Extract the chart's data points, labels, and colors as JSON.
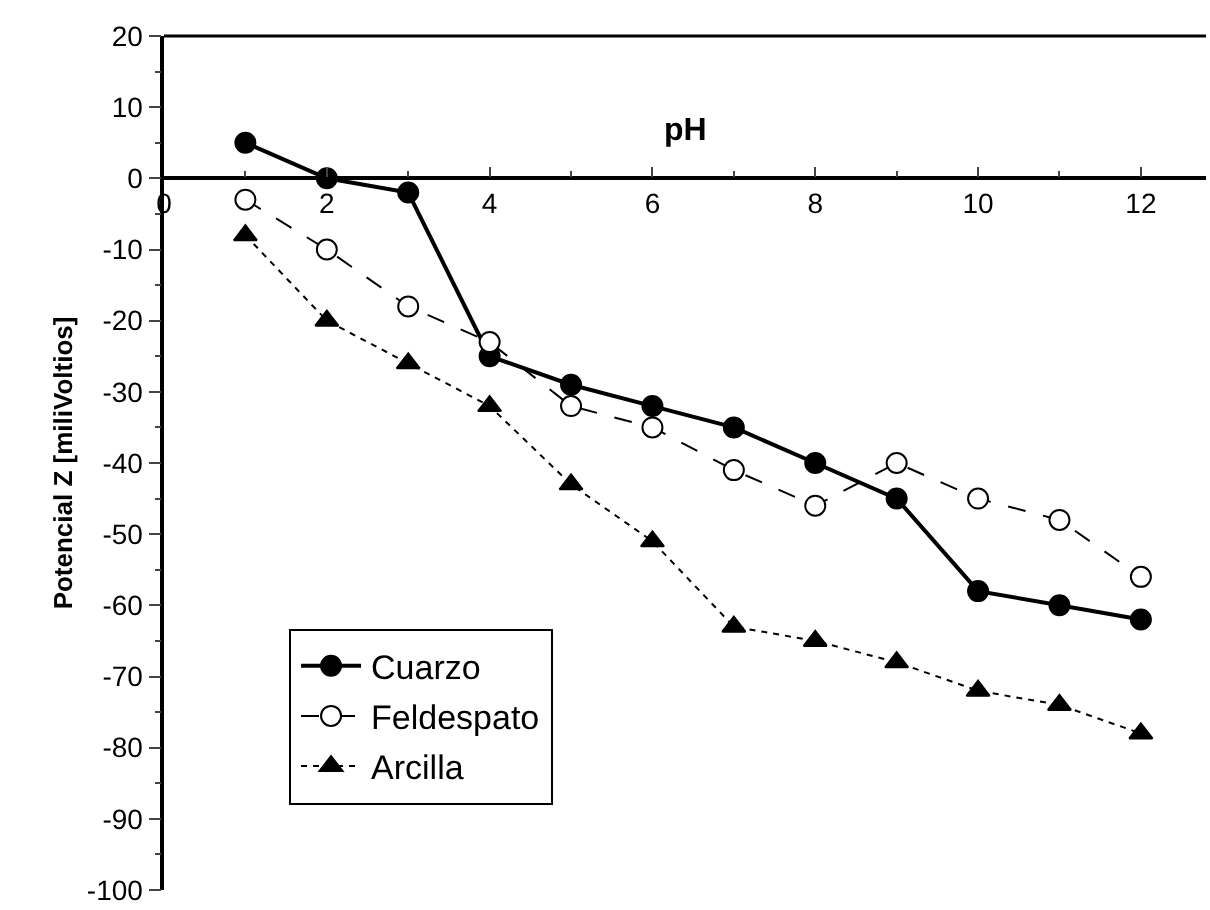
{
  "chart_data": {
    "type": "line",
    "xlabel": "pH",
    "ylabel": "Potencial Z [miliVoltios]",
    "x": [
      1,
      2,
      3,
      4,
      5,
      6,
      7,
      8,
      9,
      10,
      11,
      12
    ],
    "series": [
      {
        "name": "Cuarzo",
        "color": "#000000",
        "marker": "circle",
        "line_style": "solid",
        "values": [
          5,
          0,
          -2,
          -25,
          -29,
          -32,
          -35,
          -40,
          -45,
          -58,
          -60,
          -62
        ]
      },
      {
        "name": "Feldespato",
        "color": "#000000",
        "marker": "circle",
        "line_style": "dashed",
        "values": [
          -3,
          -10,
          -18,
          -23,
          -32,
          -35,
          -41,
          -46,
          -40,
          -45,
          -48,
          -56
        ]
      },
      {
        "name": "Arcilla",
        "color": "#000000",
        "marker": "triangle",
        "line_style": "dotted",
        "values": [
          -8,
          -20,
          -26,
          -32,
          -43,
          -51,
          -63,
          -65,
          -68,
          -72,
          -74,
          -78
        ]
      }
    ],
    "xlim": [
      0,
      12.8
    ],
    "xticks": [
      0,
      2,
      4,
      6,
      8,
      10,
      12
    ],
    "ylim": [
      -100,
      20
    ],
    "yticks": [
      -100,
      -90,
      -80,
      -70,
      -60,
      -50,
      -40,
      -30,
      -20,
      -10,
      0,
      10,
      20
    ],
    "legend": "bottom left"
  }
}
